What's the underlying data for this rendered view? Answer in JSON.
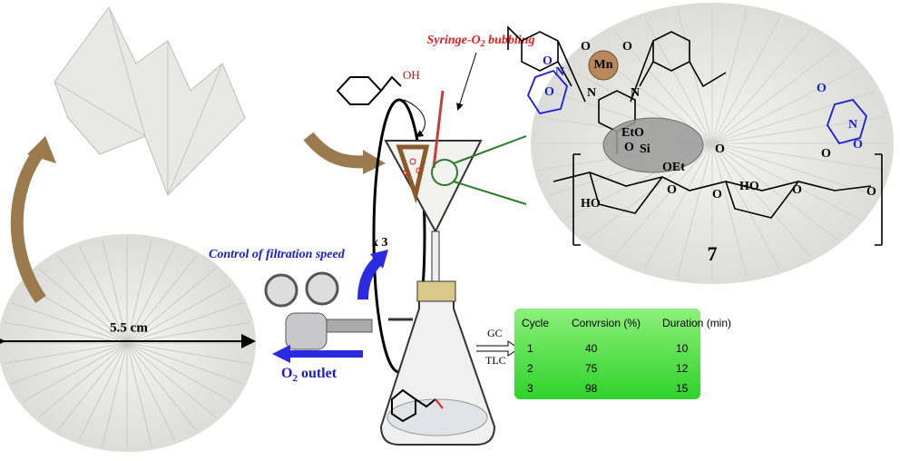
{
  "funnel": {
    "syringe_label": {
      "main": "Syringe-O",
      "sub": "2",
      "tail": " bubbling"
    },
    "reactant_group": "OH",
    "repeat": "x 3"
  },
  "control_label": "Control of filtration speed",
  "outlet_label": {
    "main": "O",
    "sub": "2",
    "tail": " outlet"
  },
  "filter_diameter": "5.5 cm",
  "analysis_methods": [
    "GC",
    "TLC"
  ],
  "table": {
    "header": [
      "Cycle",
      "Convrsion (%)",
      "Duration (min)"
    ],
    "rows": [
      [
        1,
        40,
        10
      ],
      [
        2,
        75,
        12
      ],
      [
        3,
        98,
        15
      ]
    ]
  },
  "catalyst": {
    "metal": "Mn",
    "compound_number": "7",
    "labels": [
      "O",
      "O",
      "N",
      "N",
      "O",
      "N",
      "O",
      "O",
      "N",
      "O",
      "O",
      "EtO",
      "Si",
      "OEt",
      "O",
      "O",
      "O",
      "HO",
      "HO",
      "O",
      "O",
      "O"
    ]
  }
}
